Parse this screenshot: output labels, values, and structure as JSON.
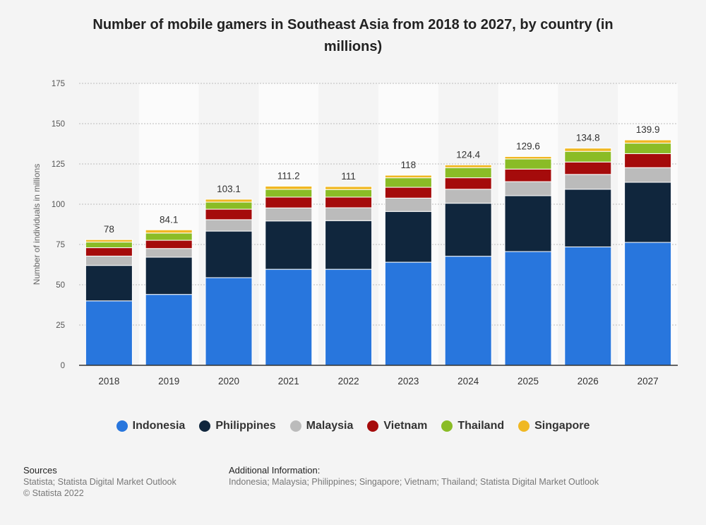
{
  "chart_data": {
    "type": "bar",
    "stacked": true,
    "title": "Number of mobile gamers in Southeast Asia from 2018 to 2027, by country (in millions)",
    "xlabel": "",
    "ylabel": "Number of individuals in millions",
    "ylim": [
      0,
      175
    ],
    "yticks": [
      0,
      25,
      50,
      75,
      100,
      125,
      150,
      175
    ],
    "grid": true,
    "legend_position": "bottom",
    "categories": [
      "2018",
      "2019",
      "2020",
      "2021",
      "2022",
      "2023",
      "2024",
      "2025",
      "2026",
      "2027"
    ],
    "totals": [
      "78",
      "84.1",
      "103.1",
      "111.2",
      "111",
      "118",
      "124.4",
      "129.6",
      "134.8",
      "139.9"
    ],
    "series": [
      {
        "name": "Indonesia",
        "color": "#2876dd",
        "values": [
          40,
          44,
          54.4,
          59.6,
          59.6,
          64,
          67.7,
          70.6,
          73.5,
          76.3
        ]
      },
      {
        "name": "Philippines",
        "color": "#10263d",
        "values": [
          22,
          23.1,
          28.9,
          30,
          30.2,
          31.5,
          32.9,
          34.7,
          35.8,
          37.3
        ]
      },
      {
        "name": "Malaysia",
        "color": "#bbbbbb",
        "values": [
          5.8,
          5.4,
          7.1,
          8.1,
          8,
          8.3,
          8.7,
          8.7,
          9.2,
          9.1
        ]
      },
      {
        "name": "Vietnam",
        "color": "#a50b0b",
        "values": [
          5.2,
          5.1,
          6.5,
          6.7,
          6.6,
          6.7,
          7.1,
          7.8,
          7.7,
          8.7
        ]
      },
      {
        "name": "Thailand",
        "color": "#8abc26",
        "values": [
          3.5,
          4.5,
          4.4,
          4.8,
          4.7,
          5.9,
          6.3,
          6.3,
          6.6,
          6.5
        ]
      },
      {
        "name": "Singapore",
        "color": "#f0b823",
        "values": [
          1.5,
          2,
          1.8,
          2,
          1.9,
          1.6,
          1.7,
          1.5,
          2,
          2
        ]
      }
    ]
  },
  "footer": {
    "sources_heading": "Sources",
    "sources_line1": "Statista; Statista Digital Market Outlook",
    "sources_line2": "© Statista 2022",
    "info_heading": "Additional Information:",
    "info_text": "Indonesia; Malaysia; Philippines; Singapore; Vietnam; Thailand; Statista Digital Market Outlook"
  }
}
